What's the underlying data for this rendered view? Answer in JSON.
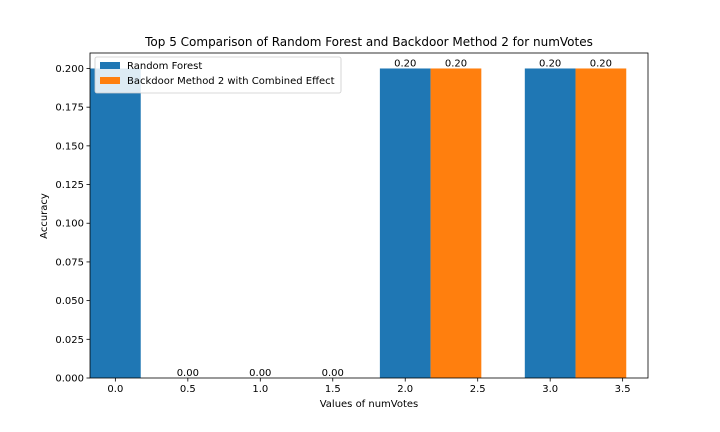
{
  "chart_data": {
    "type": "bar",
    "title": "Top 5 Comparison of Random Forest and Backdoor Method 2 for numVotes",
    "xlabel": "Values of numVotes",
    "ylabel": "Accuracy",
    "xlim": [
      -0.175,
      3.675
    ],
    "ylim": [
      0,
      0.21
    ],
    "x_ticks": [
      0.0,
      0.5,
      1.0,
      1.5,
      2.0,
      2.5,
      3.0,
      3.5
    ],
    "x_tick_labels": [
      "0.0",
      "0.5",
      "1.0",
      "1.5",
      "2.0",
      "2.5",
      "3.0",
      "3.5"
    ],
    "y_ticks": [
      0.0,
      0.025,
      0.05,
      0.075,
      0.1,
      0.125,
      0.15,
      0.175,
      0.2
    ],
    "y_tick_labels": [
      "0.000",
      "0.025",
      "0.050",
      "0.075",
      "0.100",
      "0.125",
      "0.150",
      "0.175",
      "0.200"
    ],
    "bar_width": 0.35,
    "legend_position": "upper-left",
    "grid": false,
    "series": [
      {
        "name": "Random Forest",
        "color": "#1f77b4",
        "x": [
          0.0,
          0.5,
          1.0,
          1.5,
          2.0,
          3.0
        ],
        "values": [
          0.2,
          0.0,
          0.0,
          0.0,
          0.2,
          0.2
        ],
        "labels": [
          null,
          "0.00",
          "0.00",
          "0.00",
          "0.20",
          "0.20"
        ]
      },
      {
        "name": "Backdoor Method 2 with Combined Effect",
        "color": "#ff7f0e",
        "x": [
          2.35,
          3.35
        ],
        "values": [
          0.2,
          0.2
        ],
        "labels": [
          "0.20",
          "0.20"
        ]
      }
    ]
  }
}
